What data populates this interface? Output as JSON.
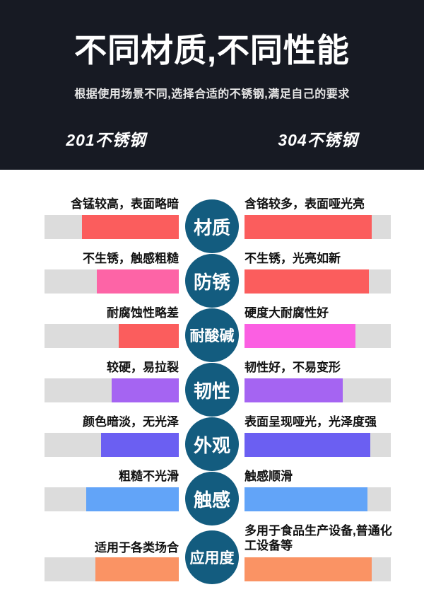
{
  "header": {
    "title": "不同材质,不同性能",
    "subtitle": "根据使用场景不同,选择合适的不锈钢,满足自己的要求",
    "left_column": "201不锈钢",
    "right_column": "304不锈钢",
    "bg_color": "#171a23"
  },
  "badge_color": "#135c7f",
  "track_color": "#dcdcdc",
  "rows": [
    {
      "property": "材质",
      "left": {
        "text": "含锰较高，表面略暗",
        "fill_pct": 72,
        "color": "#fb5d5d"
      },
      "right": {
        "text": "含铬较多，表面哑光亮",
        "fill_pct": 87,
        "color": "#fb5d5d"
      }
    },
    {
      "property": "防锈",
      "left": {
        "text": "不生锈，触感粗糙",
        "fill_pct": 61,
        "color": "#fd64a6"
      },
      "right": {
        "text": "不生锈，光亮如新",
        "fill_pct": 85,
        "color": "#fb5d5d"
      }
    },
    {
      "property": "耐酸碱",
      "left": {
        "text": "耐腐蚀性略差",
        "fill_pct": 45,
        "color": "#fb5d5d"
      },
      "right": {
        "text": "硬度大耐腐性好",
        "fill_pct": 76,
        "color": "#fb5fe2"
      }
    },
    {
      "property": "韧性",
      "left": {
        "text": "较硬，易拉裂",
        "fill_pct": 50,
        "color": "#a564f2"
      },
      "right": {
        "text": "韧性好，不易变形",
        "fill_pct": 67,
        "color": "#a564f2"
      }
    },
    {
      "property": "外观",
      "left": {
        "text": "颜色暗淡，无光泽",
        "fill_pct": 58,
        "color": "#6b5ff2"
      },
      "right": {
        "text": "表面呈现哑光，光泽度强",
        "fill_pct": 86,
        "color": "#6b5ff2"
      }
    },
    {
      "property": "触感",
      "left": {
        "text": "粗糙不光滑",
        "fill_pct": 69,
        "color": "#62a4f8"
      },
      "right": {
        "text": "触感顺滑",
        "fill_pct": 84,
        "color": "#62a4f8"
      }
    },
    {
      "property": "应用度",
      "tall": true,
      "left": {
        "text": "适用于各类场合",
        "fill_pct": 62,
        "color": "#fa9364"
      },
      "right": {
        "text": "多用于食品生产设备,普通化工设备等",
        "fill_pct": 87,
        "color": "#fa9364"
      }
    }
  ]
}
